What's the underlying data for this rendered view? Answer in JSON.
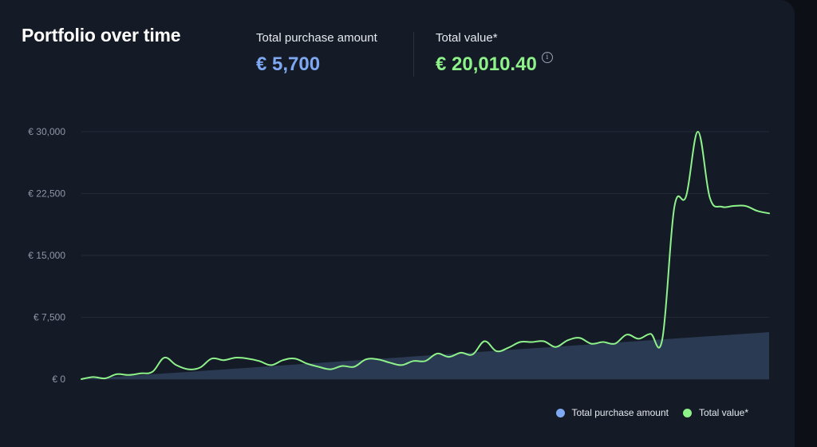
{
  "card": {
    "title": "Portfolio over time"
  },
  "stats": {
    "purchase_label": "Total purchase amount",
    "purchase_value": "€ 5,700",
    "total_label": "Total value*",
    "total_value": "€ 20,010.40",
    "info_icon": "info-circle-icon"
  },
  "colors": {
    "purchase": "#7ea8f2",
    "total": "#8ef28a",
    "area_fill": "#2a3a52"
  },
  "legend": {
    "purchase": "Total purchase amount",
    "total": "Total value*"
  },
  "chart_data": {
    "type": "line",
    "y_ticks": [
      "€ 30,000",
      "€ 22,500",
      "€ 15,000",
      "€ 7,500",
      "€ 0"
    ],
    "y_tick_values": [
      30000,
      22500,
      15000,
      7500,
      0
    ],
    "ylim": [
      0,
      30000
    ],
    "grid": true,
    "legend_position": "bottom-right",
    "series": [
      {
        "name": "Total purchase amount",
        "kind": "area",
        "color": "#7ea8f2",
        "values": [
          0,
          300,
          600,
          900,
          1200,
          1500,
          1800,
          2100,
          2400,
          2700,
          3000,
          3300,
          3600,
          3900,
          4200,
          4500,
          4800,
          5100,
          5400,
          5700
        ]
      },
      {
        "name": "Total value*",
        "kind": "line",
        "color": "#8ef28a",
        "values": [
          0,
          250,
          100,
          600,
          500,
          700,
          900,
          2600,
          1700,
          1200,
          1400,
          2500,
          2300,
          2600,
          2500,
          2200,
          1700,
          2300,
          2500,
          1900,
          1500,
          1200,
          1600,
          1500,
          2400,
          2400,
          2000,
          1700,
          2200,
          2200,
          3100,
          2700,
          3200,
          3000,
          4600,
          3400,
          3800,
          4500,
          4500,
          4600,
          3900,
          4700,
          5000,
          4300,
          4500,
          4300,
          5400,
          4900,
          5500,
          4900,
          20800,
          22200,
          30000,
          22000,
          20900,
          21000,
          21000,
          20400,
          20100
        ]
      }
    ]
  }
}
